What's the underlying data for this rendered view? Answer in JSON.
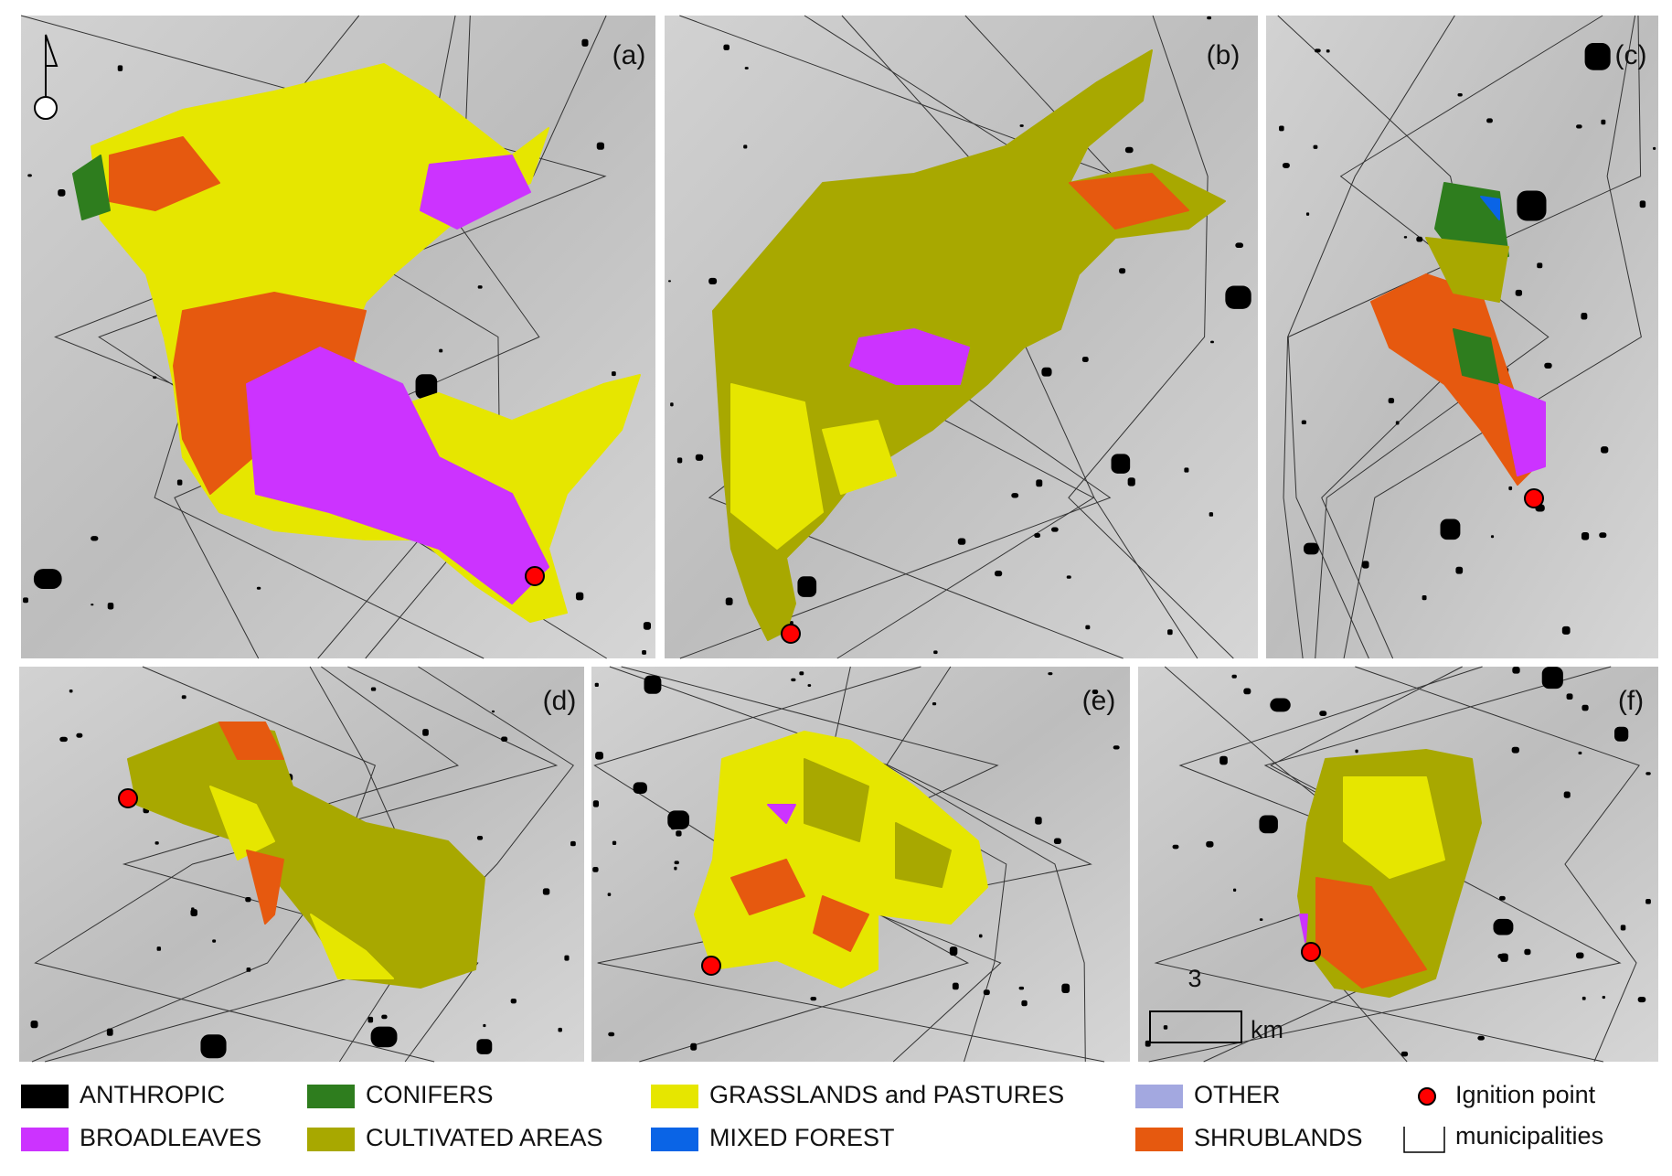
{
  "panels": [
    {
      "label": "(a)"
    },
    {
      "label": "(b)"
    },
    {
      "label": "(c)"
    },
    {
      "label": "(d)"
    },
    {
      "label": "(e)"
    },
    {
      "label": "(f)"
    }
  ],
  "legend": [
    {
      "label": "ANTHROPIC",
      "color": "#000000"
    },
    {
      "label": "BROADLEAVES",
      "color": "#cc33ff"
    },
    {
      "label": "CONIFERS",
      "color": "#2e7d1e"
    },
    {
      "label": "CULTIVATED AREAS",
      "color": "#a8a800"
    },
    {
      "label": "GRASSLANDS and PASTURES",
      "color": "#e6e600"
    },
    {
      "label": "MIXED FOREST",
      "color": "#0a64e6"
    },
    {
      "label": "OTHER",
      "color": "#a3a8e0"
    },
    {
      "label": "SHRUBLANDS",
      "color": "#e6590f"
    }
  ],
  "ignition_point": {
    "label": "Ignition point",
    "color": "#ff0000"
  },
  "municipalities": {
    "label": "municipalities"
  },
  "scale_bar": {
    "value": "3",
    "unit": "km"
  }
}
